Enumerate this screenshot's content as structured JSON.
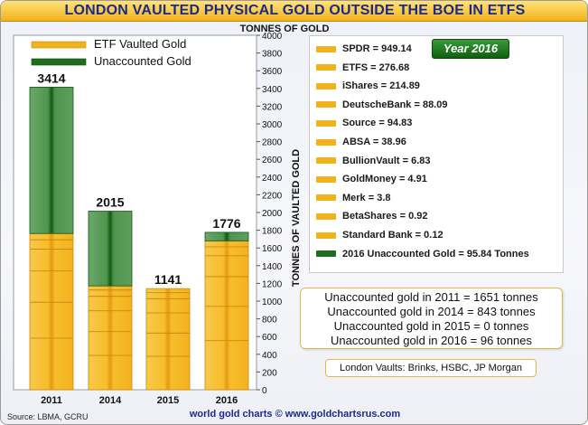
{
  "title": "LONDON VAULTED PHYSICAL GOLD OUTSIDE THE BOE IN ETFS",
  "legend": [
    {
      "name": "ETF Vaulted Gold",
      "color": "#f2b21b"
    },
    {
      "name": "Unaccounted Gold",
      "color": "#1f6e1f"
    }
  ],
  "year_badge": "Year 2016",
  "etf_list": [
    {
      "label": "SPDR = 949.14",
      "color": "#f2b21b"
    },
    {
      "label": "ETFS = 276.68",
      "color": "#f2b21b"
    },
    {
      "label": "iShares = 214.89",
      "color": "#f2b21b"
    },
    {
      "label": "DeutscheBank = 88.09",
      "color": "#f2b21b"
    },
    {
      "label": "Source = 94.83",
      "color": "#f2b21b"
    },
    {
      "label": "ABSA = 38.96",
      "color": "#f2b21b"
    },
    {
      "label": "BullionVault = 6.83",
      "color": "#f2b21b"
    },
    {
      "label": "GoldMoney = 4.91",
      "color": "#f2b21b"
    },
    {
      "label": "Merk = 3.8",
      "color": "#f2b21b"
    },
    {
      "label": "BetaShares = 0.92",
      "color": "#f2b21b"
    },
    {
      "label": "Standard Bank = 0.12",
      "color": "#f2b21b"
    },
    {
      "label": "2016 Unaccounted Gold = 95.84 Tonnes",
      "color": "#1f6e1f"
    }
  ],
  "summary": [
    "Unaccounted gold in 2011 = 1651 tonnes",
    "Unaccounted gold in 2014 = 843 tonnes",
    "Unaccounted gold in 2015 = 0 tonnes",
    "Unaccounted gold in 2016 = 96 tonnes"
  ],
  "vaults_note": "London Vaults: Brinks, HSBC, JP Morgan",
  "source_note": "Source: LBMA, GCRU",
  "credit": "world gold charts © www.goldchartsrus.com",
  "chart_data": {
    "type": "bar",
    "stacked": true,
    "categories": [
      "2011",
      "2014",
      "2015",
      "2016"
    ],
    "series": [
      {
        "name": "ETF Vaulted Gold",
        "values": [
          1763,
          1172,
          1141,
          1680
        ],
        "color": "#f2b21b"
      },
      {
        "name": "Unaccounted Gold",
        "values": [
          1651,
          843,
          0,
          96
        ],
        "color": "#1f6e1f"
      }
    ],
    "totals": [
      3414,
      2015,
      1141,
      1776
    ],
    "ylabel": "TONNES OF VAULTED GOLD",
    "axis_top_label": "TONNES OF GOLD",
    "ylim": [
      0,
      4000
    ],
    "yticks": [
      0,
      200,
      400,
      600,
      800,
      1000,
      1200,
      1400,
      1600,
      1800,
      2000,
      2200,
      2400,
      2600,
      2800,
      3000,
      3200,
      3400,
      3600,
      3800,
      4000
    ],
    "grid": false,
    "legend_position": "top-left"
  }
}
